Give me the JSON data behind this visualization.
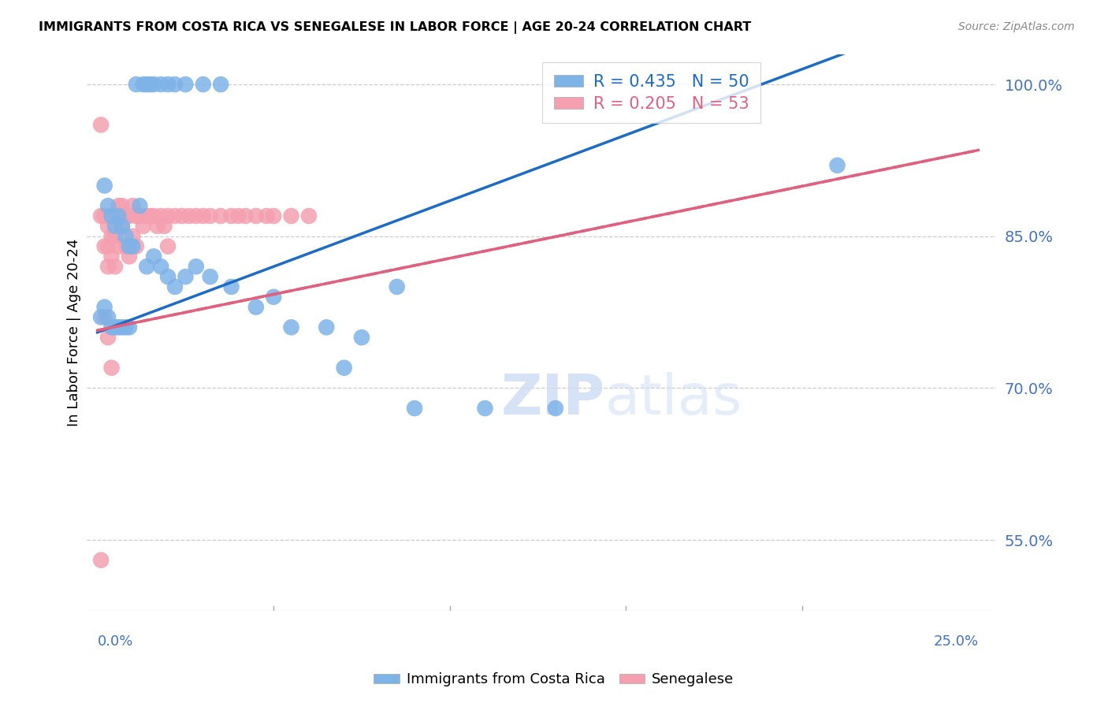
{
  "title": "IMMIGRANTS FROM COSTA RICA VS SENEGALESE IN LABOR FORCE | AGE 20-24 CORRELATION CHART",
  "source": "Source: ZipAtlas.com",
  "ylabel": "In Labor Force | Age 20-24",
  "legend_label_blue": "Immigrants from Costa Rica",
  "legend_label_pink": "Senegalese",
  "blue_R": 0.435,
  "blue_N": 50,
  "pink_R": 0.205,
  "pink_N": 53,
  "xlim": [
    0.0,
    0.25
  ],
  "ylim": [
    0.48,
    1.03
  ],
  "yticks": [
    0.55,
    0.7,
    0.85,
    1.0
  ],
  "xticks": [
    0.0,
    0.05,
    0.1,
    0.15,
    0.2,
    0.25
  ],
  "blue_color": "#7EB3E8",
  "pink_color": "#F4A0B0",
  "blue_line_color": "#1C6BC4",
  "pink_line_color": "#E06080",
  "blue_x": [
    0.011,
    0.013,
    0.014,
    0.015,
    0.016,
    0.018,
    0.02,
    0.022,
    0.025,
    0.03,
    0.035,
    0.002,
    0.003,
    0.004,
    0.005,
    0.006,
    0.007,
    0.008,
    0.009,
    0.01,
    0.012,
    0.014,
    0.016,
    0.018,
    0.02,
    0.022,
    0.025,
    0.028,
    0.032,
    0.038,
    0.045,
    0.055,
    0.065,
    0.075,
    0.085,
    0.001,
    0.002,
    0.003,
    0.004,
    0.005,
    0.006,
    0.007,
    0.008,
    0.009,
    0.05,
    0.07,
    0.09,
    0.11,
    0.13,
    0.21
  ],
  "blue_y": [
    1.0,
    1.0,
    1.0,
    1.0,
    1.0,
    1.0,
    1.0,
    1.0,
    1.0,
    1.0,
    1.0,
    0.9,
    0.88,
    0.87,
    0.86,
    0.87,
    0.86,
    0.85,
    0.84,
    0.84,
    0.88,
    0.82,
    0.83,
    0.82,
    0.81,
    0.8,
    0.81,
    0.82,
    0.81,
    0.8,
    0.78,
    0.76,
    0.76,
    0.75,
    0.8,
    0.77,
    0.78,
    0.77,
    0.76,
    0.76,
    0.76,
    0.76,
    0.76,
    0.76,
    0.79,
    0.72,
    0.68,
    0.68,
    0.68,
    0.92
  ],
  "pink_x": [
    0.001,
    0.001,
    0.002,
    0.002,
    0.003,
    0.003,
    0.003,
    0.004,
    0.004,
    0.005,
    0.005,
    0.005,
    0.006,
    0.006,
    0.007,
    0.007,
    0.008,
    0.008,
    0.009,
    0.009,
    0.01,
    0.01,
    0.011,
    0.011,
    0.012,
    0.013,
    0.014,
    0.015,
    0.016,
    0.017,
    0.018,
    0.019,
    0.02,
    0.02,
    0.022,
    0.024,
    0.026,
    0.028,
    0.03,
    0.032,
    0.035,
    0.038,
    0.04,
    0.042,
    0.045,
    0.048,
    0.05,
    0.055,
    0.06,
    0.002,
    0.003,
    0.001,
    0.004
  ],
  "pink_y": [
    0.96,
    0.87,
    0.87,
    0.84,
    0.86,
    0.84,
    0.82,
    0.85,
    0.83,
    0.87,
    0.85,
    0.82,
    0.88,
    0.84,
    0.88,
    0.86,
    0.87,
    0.84,
    0.87,
    0.83,
    0.88,
    0.85,
    0.87,
    0.84,
    0.87,
    0.86,
    0.87,
    0.87,
    0.87,
    0.86,
    0.87,
    0.86,
    0.87,
    0.84,
    0.87,
    0.87,
    0.87,
    0.87,
    0.87,
    0.87,
    0.87,
    0.87,
    0.87,
    0.87,
    0.87,
    0.87,
    0.87,
    0.87,
    0.87,
    0.77,
    0.75,
    0.53,
    0.72
  ]
}
